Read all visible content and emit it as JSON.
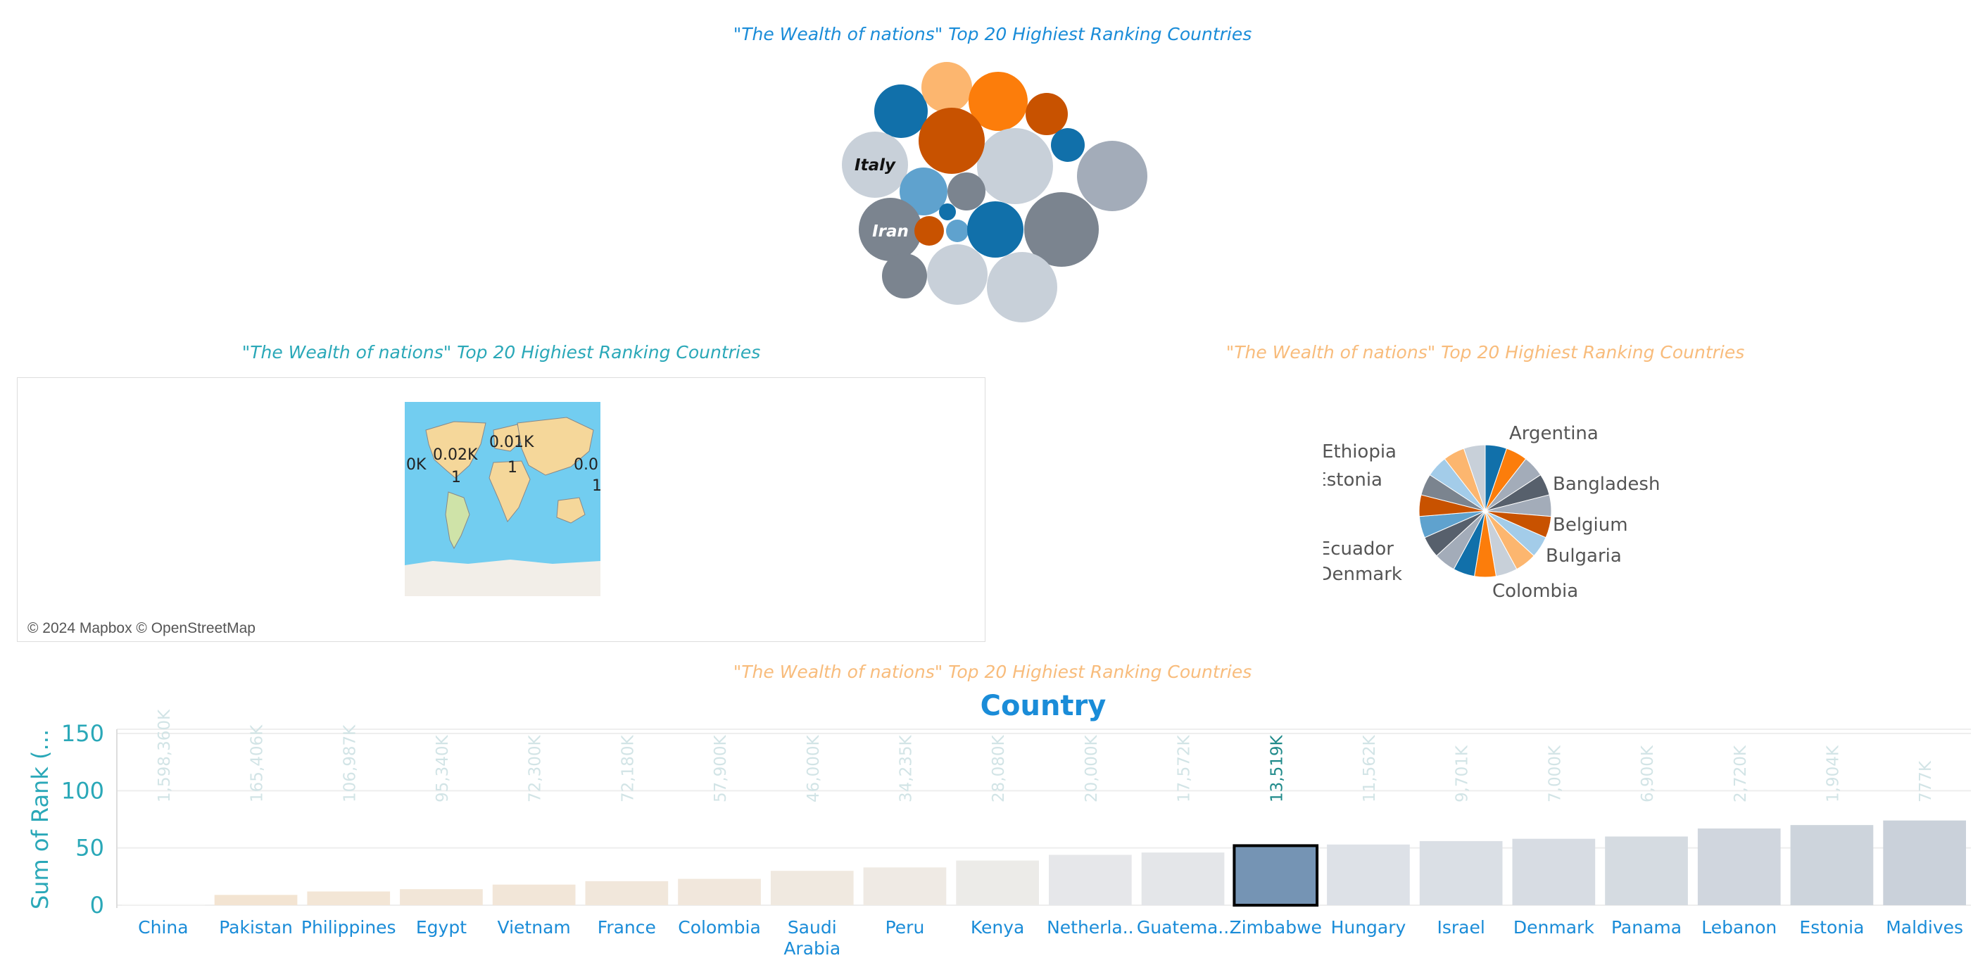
{
  "titles": {
    "bubble": "\"The Wealth of nations\" Top 20 Highiest Ranking Countries",
    "map": "\"The Wealth of nations\" Top 20 Highiest Ranking Countries",
    "pie": "\"The Wealth of nations\" Top 20 Highiest Ranking Countries",
    "bar": "\"The Wealth of nations\" Top 20 Highiest Ranking Countries"
  },
  "map": {
    "credit": "© 2024 Mapbox © OpenStreetMap",
    "labels": [
      "0.02K",
      "0.01K",
      "0K",
      "0.0",
      "1",
      "1",
      "1"
    ]
  },
  "chart_data": [
    {
      "type": "bubble",
      "labels": [
        "Italy",
        "Iran"
      ],
      "colors": [
        "#1170aa",
        "#fcb66f",
        "#fc7d0b",
        "#c85200",
        "#a3acb9",
        "#c8d0d9",
        "#57606c",
        "#5fa2ce",
        "#7b848f"
      ]
    },
    {
      "type": "pie",
      "labels": [
        "Argentina",
        "Bangladesh",
        "Belgium",
        "Bulgaria",
        "Colombia",
        "Denmark",
        "Ecuador",
        "Estonia",
        "Ethiopia"
      ]
    },
    {
      "type": "bar",
      "title": "Country",
      "ylabel": "Sum of Rank (...",
      "ylim": [
        0,
        150
      ],
      "yticks": [
        0,
        50,
        100,
        150
      ],
      "categories": [
        "China",
        "Pakistan",
        "Philippines",
        "Egypt",
        "Vietnam",
        "France",
        "Colombia",
        "Saudi Arabia",
        "Peru",
        "Kenya",
        "Netherla..",
        "Guatema..",
        "Zimbabwe",
        "Hungary",
        "Israel",
        "Denmark",
        "Panama",
        "Lebanon",
        "Estonia",
        "Maldives"
      ],
      "values": [
        1,
        9,
        12,
        14,
        18,
        21,
        23,
        30,
        33,
        39,
        44,
        46,
        52,
        53,
        56,
        58,
        60,
        67,
        70,
        74
      ],
      "value_labels": [
        "1,598,360K",
        "165,406K",
        "106,987K",
        "95,340K",
        "72,300K",
        "72,180K",
        "57,900K",
        "46,000K",
        "34,235K",
        "28,080K",
        "20,000K",
        "17,572K",
        "13,519K",
        "11,562K",
        "9,701K",
        "7,000K",
        "6,900K",
        "2,720K",
        "1,904K",
        "777K"
      ],
      "highlighted": "Zimbabwe"
    }
  ]
}
